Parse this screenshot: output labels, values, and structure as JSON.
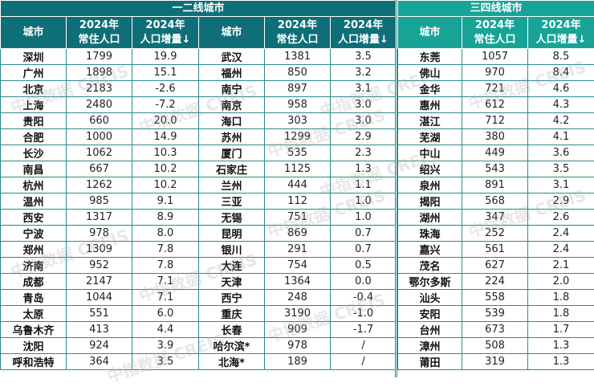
{
  "groups": {
    "tier12": "一二线城市",
    "tier34": "三四线城市"
  },
  "headers": {
    "city": "城市",
    "pop_line1": "2024年",
    "pop_line2": "常住人口",
    "inc_line1": "2024年",
    "inc_line2": "人口增量↓"
  },
  "watermark": "中指数据 CREIS",
  "tier12_col_a": [
    [
      "深圳",
      "1799",
      "19.9"
    ],
    [
      "广州",
      "1898",
      "15.1"
    ],
    [
      "北京",
      "2183",
      "-2.6"
    ],
    [
      "上海",
      "2480",
      "-7.2"
    ],
    [
      "贵阳",
      "660",
      "20.0"
    ],
    [
      "合肥",
      "1000",
      "14.9"
    ],
    [
      "长沙",
      "1062",
      "10.3"
    ],
    [
      "南昌",
      "667",
      "10.2"
    ],
    [
      "杭州",
      "1262",
      "10.2"
    ],
    [
      "温州",
      "985",
      "9.1"
    ],
    [
      "西安",
      "1317",
      "8.9"
    ],
    [
      "宁波",
      "978",
      "8.0"
    ],
    [
      "郑州",
      "1309",
      "7.8"
    ],
    [
      "济南",
      "952",
      "7.8"
    ],
    [
      "成都",
      "2147",
      "7.1"
    ],
    [
      "青岛",
      "1044",
      "7.1"
    ],
    [
      "太原",
      "551",
      "6.0"
    ],
    [
      "乌鲁木齐",
      "413",
      "4.4"
    ],
    [
      "沈阳",
      "924",
      "3.9"
    ],
    [
      "呼和浩特",
      "364",
      "3.5"
    ]
  ],
  "tier12_col_b": [
    [
      "武汉",
      "1381",
      "3.5"
    ],
    [
      "福州",
      "850",
      "3.2"
    ],
    [
      "南宁",
      "897",
      "3.1"
    ],
    [
      "南京",
      "958",
      "3.0"
    ],
    [
      "海口",
      "303",
      "3.0"
    ],
    [
      "苏州",
      "1299",
      "2.9"
    ],
    [
      "厦门",
      "535",
      "2.3"
    ],
    [
      "石家庄",
      "1125",
      "1.3"
    ],
    [
      "兰州",
      "444",
      "1.1"
    ],
    [
      "三亚",
      "112",
      "1.0"
    ],
    [
      "无锡",
      "751",
      "1.0"
    ],
    [
      "昆明",
      "869",
      "0.7"
    ],
    [
      "银川",
      "291",
      "0.7"
    ],
    [
      "大连",
      "754",
      "0.5"
    ],
    [
      "天津",
      "1364",
      "0.0"
    ],
    [
      "西宁",
      "248",
      "-0.4"
    ],
    [
      "重庆",
      "3190",
      "-1.0"
    ],
    [
      "长春",
      "909",
      "-1.7"
    ],
    [
      "哈尔滨*",
      "978",
      "/"
    ],
    [
      "北海*",
      "189",
      "/"
    ]
  ],
  "tier34": [
    [
      "东莞",
      "1057",
      "8.5"
    ],
    [
      "佛山",
      "970",
      "8.4"
    ],
    [
      "金华",
      "721",
      "4.6"
    ],
    [
      "惠州",
      "612",
      "4.3"
    ],
    [
      "湛江",
      "712",
      "4.2"
    ],
    [
      "芜湖",
      "380",
      "4.1"
    ],
    [
      "中山",
      "449",
      "3.6"
    ],
    [
      "绍兴",
      "543",
      "3.5"
    ],
    [
      "泉州",
      "891",
      "3.1"
    ],
    [
      "揭阳",
      "568",
      "2.9"
    ],
    [
      "湖州",
      "347",
      "2.6"
    ],
    [
      "珠海",
      "252",
      "2.4"
    ],
    [
      "嘉兴",
      "561",
      "2.4"
    ],
    [
      "茂名",
      "627",
      "2.1"
    ],
    [
      "鄂尔多斯",
      "224",
      "2.0"
    ],
    [
      "汕头",
      "558",
      "1.8"
    ],
    [
      "安阳",
      "539",
      "1.8"
    ],
    [
      "台州",
      "673",
      "1.7"
    ],
    [
      "漳州",
      "508",
      "1.3"
    ],
    [
      "莆田",
      "319",
      "1.3"
    ]
  ],
  "colors": {
    "tier12_header": "#0f6f78",
    "tier34_header": "#17a497",
    "grid": "#2a8a8c"
  }
}
